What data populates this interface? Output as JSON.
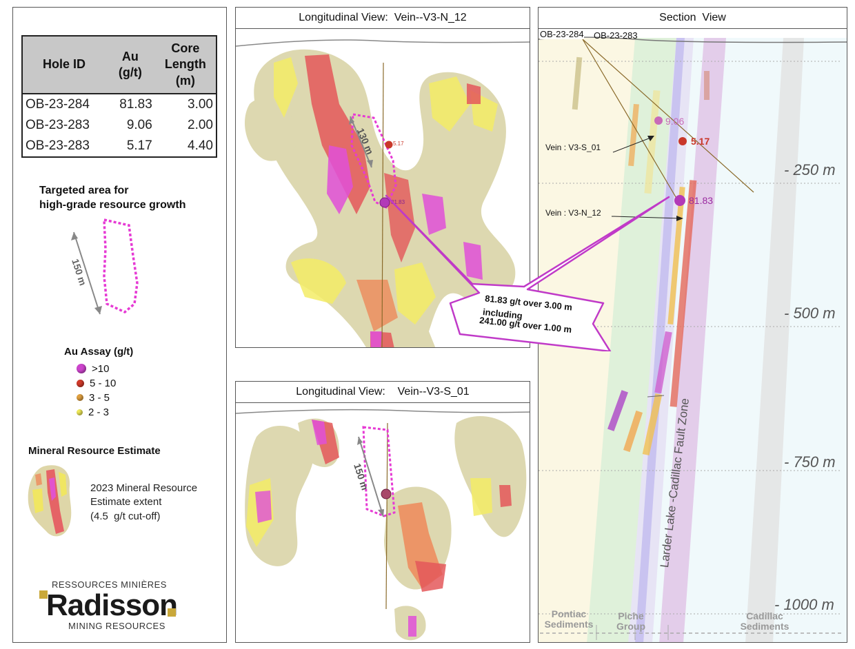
{
  "table": {
    "headers": [
      "Hole ID",
      "Au\n(g/t)",
      "Core\nLength\n(m)"
    ],
    "rows": [
      {
        "hole": "OB-23-284",
        "au": "81.83",
        "length": "3.00"
      },
      {
        "hole": "OB-23-283",
        "au": "9.06",
        "length": "2.00"
      },
      {
        "hole": "OB-23-283",
        "au": "5.17",
        "length": "4.40"
      }
    ]
  },
  "legend": {
    "targeted_heading": "Targeted area for\nhigh-grade resource growth",
    "scale_label": "150 m",
    "assay_heading": "Au Assay (g/t)",
    "assay_items": [
      {
        "label": ">10",
        "color": "#cc44cc"
      },
      {
        "label": "5 - 10",
        "color": "#d03a2a"
      },
      {
        "label": "3 - 5",
        "color": "#e0a040"
      },
      {
        "label": "2 - 3",
        "color": "#f2ec5a"
      }
    ],
    "mre_heading": "Mineral Resource Estimate",
    "mre_text": "2023 Mineral Resource\nEstimate extent\n(4.5  g/t cut-off)"
  },
  "logo": {
    "top": "RESSOURCES MINIÈRES",
    "name": "Radisson",
    "bottom": "MINING RESOURCES"
  },
  "view_n12": {
    "title": "Longitudinal View:  Vein--V3-N_12",
    "scale_label": "130 m",
    "point_high": "81.83",
    "point_mid": "5.17"
  },
  "view_s01": {
    "title": "Longitudinal View:    Vein--V3-S_01",
    "scale_label": "150 m"
  },
  "callout": {
    "line1": "81.83 g/t over 3.00 m",
    "line2": "including",
    "line3": "241.00 g/t over 1.00 m"
  },
  "section": {
    "title": "Section  View",
    "hole_a": "OB-23-284",
    "hole_b": "OB-23-283",
    "pt1": "9.06",
    "pt2": "5.17",
    "pt3": "81.83",
    "vein_s01": "Vein : V3-S_01",
    "vein_n12": "Vein : V3-N_12",
    "depths": [
      "- 250 m",
      "- 500 m",
      "- 750 m",
      "- 1000 m"
    ],
    "fault_label": "Larder Lake -Cadillac Fault Zone",
    "bottom_labels": [
      "Pontiac\nSediments",
      "Piche\nGroup",
      "Cadillac\nSediments"
    ]
  }
}
